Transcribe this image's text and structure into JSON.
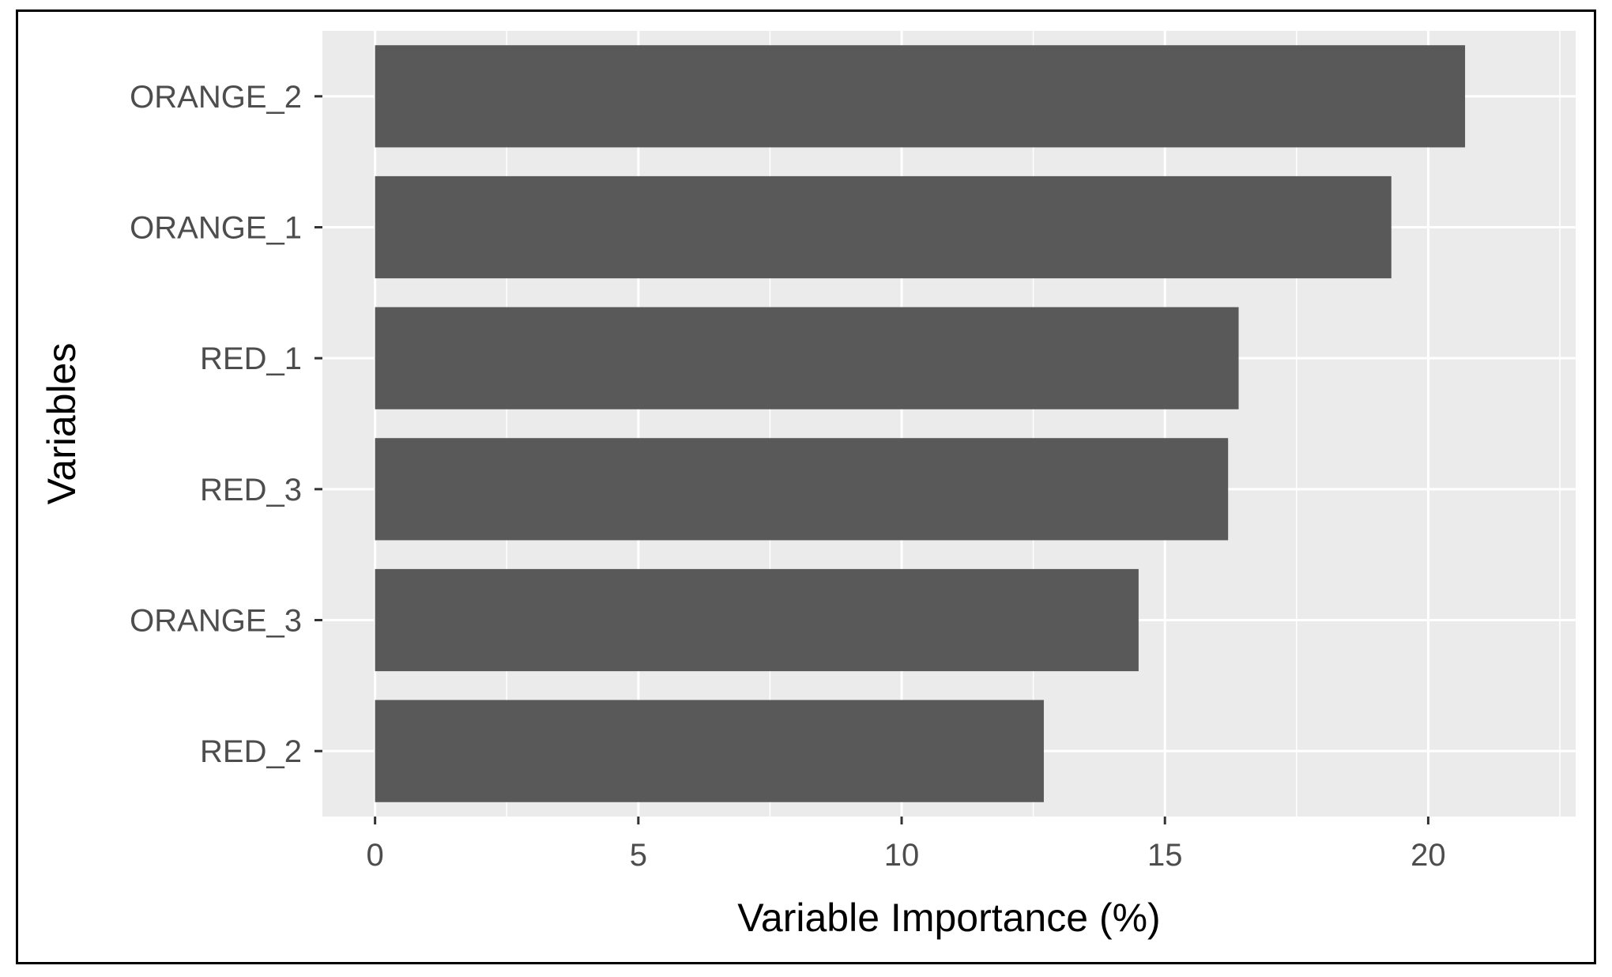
{
  "chart_data": {
    "type": "bar",
    "orientation": "horizontal",
    "title": "",
    "xlabel": "Variable Importance (%)",
    "ylabel": "Variables",
    "categories": [
      "ORANGE_2",
      "ORANGE_1",
      "RED_1",
      "RED_3",
      "ORANGE_3",
      "RED_2"
    ],
    "values": [
      20.7,
      19.3,
      16.4,
      16.2,
      14.5,
      12.7
    ],
    "xlim": [
      -1.0,
      22.8
    ],
    "xticks": [
      0,
      5,
      10,
      15,
      20
    ],
    "xtick_labels": [
      "0",
      "5",
      "10",
      "15",
      "20"
    ],
    "grid": true,
    "colors": {
      "bar": "#595959",
      "panel": "#ebebeb",
      "grid": "#ffffff",
      "text": "#4d4d4d"
    }
  }
}
